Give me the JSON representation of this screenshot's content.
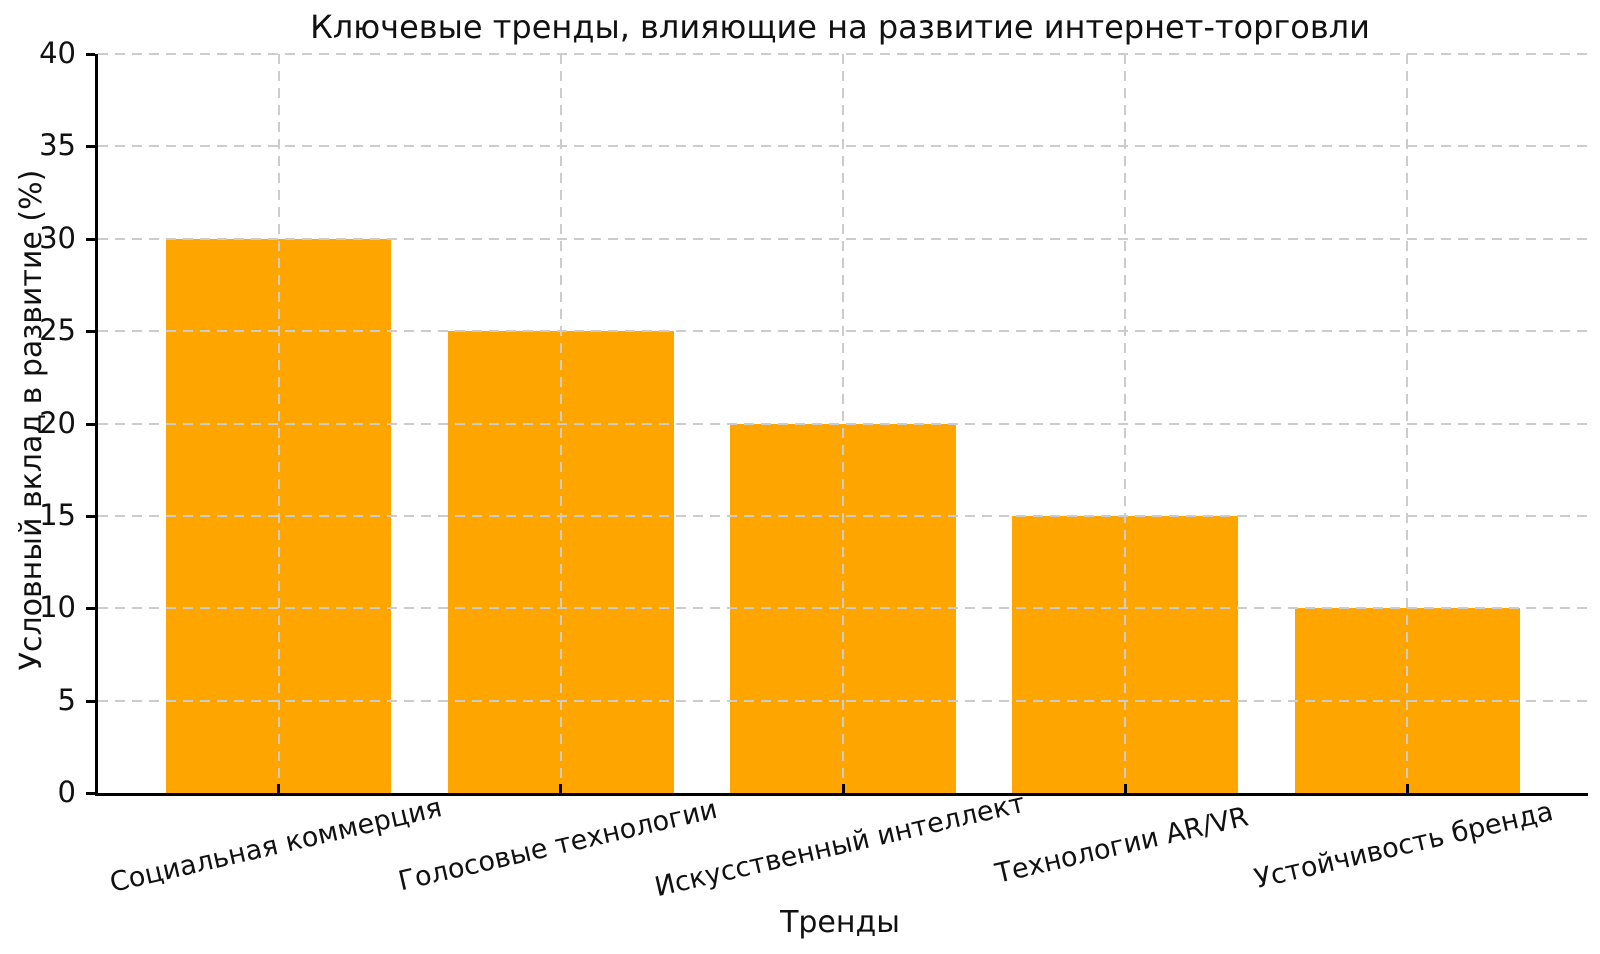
{
  "figure": {
    "background": "#ffffff",
    "text_color": "#111111"
  },
  "chart_data": {
    "type": "bar",
    "title": "Ключевые тренды, влияющие на развитие интернет-торговли",
    "xlabel": "Тренды",
    "ylabel": "Условный вклад в развитие (%)",
    "categories": [
      "Социальная коммерция",
      "Голосовые технологии",
      "Искусственный интеллект",
      "Технологии AR/VR",
      "Устойчивость бренда"
    ],
    "values": [
      30,
      25,
      20,
      15,
      10
    ],
    "bar_color": "#FFA500",
    "ylim": [
      0,
      40
    ],
    "yticks": [
      0,
      5,
      10,
      15,
      20,
      25,
      30,
      35,
      40
    ],
    "grid": {
      "show": true,
      "axis": "both",
      "line_style": "dashed",
      "color": "#cccccc",
      "above_bars": true
    },
    "legend": null,
    "xtick_label_rotation_deg": 13,
    "bar_relative_width": 0.8
  }
}
